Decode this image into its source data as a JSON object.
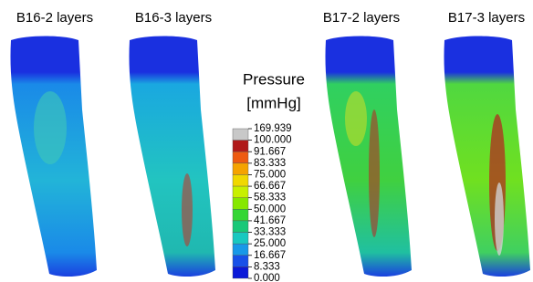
{
  "panels": [
    {
      "label": "B16-2 layers"
    },
    {
      "label": "B16-3 layers"
    },
    {
      "label": "B17-2 layers"
    },
    {
      "label": "B17-3 layers"
    }
  ],
  "legend": {
    "title": [
      "Pressure",
      "[mmHg]"
    ],
    "ticks": [
      "169.939",
      "100.000",
      "91.667",
      "83.333",
      "75.000",
      "66.667",
      "58.333",
      "50.000",
      "41.667",
      "33.333",
      "25.000",
      "16.667",
      "8.333",
      "0.000"
    ],
    "colors": [
      "#c8c8c8",
      "#b01a1a",
      "#ee5a10",
      "#f5a300",
      "#f0d800",
      "#c8f000",
      "#86e800",
      "#34d634",
      "#18c878",
      "#18c8c0",
      "#1898e8",
      "#1850e8",
      "#0a18d8"
    ]
  }
}
